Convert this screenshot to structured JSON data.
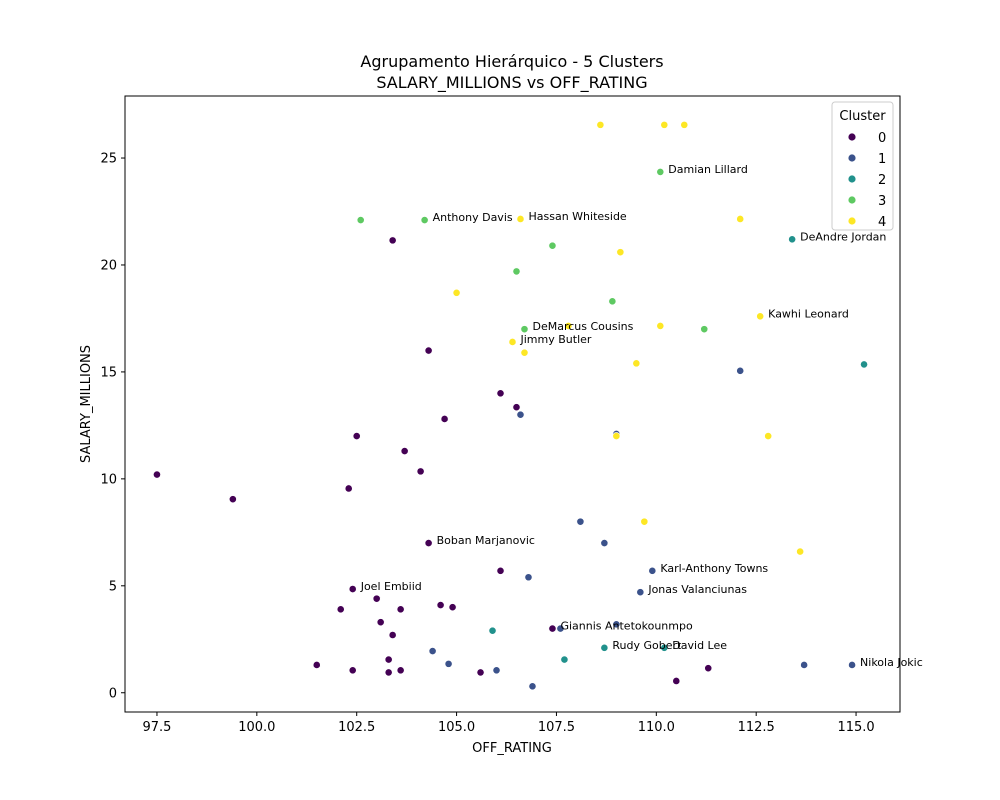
{
  "chart_data": {
    "type": "scatter",
    "title": "Agrupamento Hierárquico - 5 Clusters",
    "subtitle": "SALARY_MILLIONS vs OFF_RATING",
    "xlabel": "OFF_RATING",
    "ylabel": "SALARY_MILLIONS",
    "xlim": [
      96.7,
      116.1
    ],
    "ylim": [
      -0.9,
      27.9
    ],
    "xticks": [
      97.5,
      100.0,
      102.5,
      105.0,
      107.5,
      110.0,
      112.5,
      115.0
    ],
    "xtick_labels": [
      "97.5",
      "100.0",
      "102.5",
      "105.0",
      "107.5",
      "110.0",
      "112.5",
      "115.0"
    ],
    "yticks": [
      0,
      5,
      10,
      15,
      20,
      25
    ],
    "ytick_labels": [
      "0",
      "5",
      "10",
      "15",
      "20",
      "25"
    ],
    "grid": false,
    "legend": {
      "title": "Cluster",
      "position": "top-right"
    },
    "series": [
      {
        "name": "0",
        "color": "#440154",
        "points": [
          [
            97.5,
            10.2
          ],
          [
            99.4,
            9.05
          ],
          [
            101.5,
            1.3
          ],
          [
            102.1,
            3.9
          ],
          [
            102.3,
            9.55
          ],
          [
            102.4,
            4.85
          ],
          [
            102.4,
            1.05
          ],
          [
            102.5,
            12.0
          ],
          [
            103.0,
            4.4
          ],
          [
            103.1,
            3.3
          ],
          [
            103.3,
            1.55
          ],
          [
            103.3,
            0.95
          ],
          [
            103.4,
            21.15
          ],
          [
            103.4,
            2.7
          ],
          [
            103.6,
            3.9
          ],
          [
            103.6,
            1.05
          ],
          [
            103.7,
            11.3
          ],
          [
            104.1,
            10.35
          ],
          [
            104.3,
            16.0
          ],
          [
            104.3,
            7.0
          ],
          [
            104.6,
            4.1
          ],
          [
            104.7,
            12.8
          ],
          [
            104.9,
            4.0
          ],
          [
            105.6,
            0.95
          ],
          [
            106.1,
            14.0
          ],
          [
            106.1,
            5.7
          ],
          [
            106.5,
            13.35
          ],
          [
            107.4,
            3.0
          ],
          [
            110.5,
            0.55
          ],
          [
            111.3,
            1.15
          ]
        ]
      },
      {
        "name": "1",
        "color": "#3b528b",
        "points": [
          [
            104.4,
            1.95
          ],
          [
            104.8,
            1.35
          ],
          [
            106.0,
            1.05
          ],
          [
            106.6,
            13.0
          ],
          [
            106.8,
            5.4
          ],
          [
            106.9,
            0.3
          ],
          [
            107.6,
            3.0
          ],
          [
            108.1,
            8.0
          ],
          [
            108.7,
            7.0
          ],
          [
            109.0,
            12.1
          ],
          [
            109.0,
            3.2
          ],
          [
            109.6,
            4.7
          ],
          [
            109.9,
            5.7
          ],
          [
            112.1,
            15.05
          ],
          [
            113.7,
            1.3
          ],
          [
            114.9,
            1.3
          ]
        ]
      },
      {
        "name": "2",
        "color": "#21918c",
        "points": [
          [
            105.9,
            2.9
          ],
          [
            107.7,
            1.55
          ],
          [
            108.7,
            2.1
          ],
          [
            110.2,
            2.1
          ],
          [
            113.4,
            21.2
          ],
          [
            115.2,
            15.35
          ]
        ]
      },
      {
        "name": "3",
        "color": "#5ec962",
        "points": [
          [
            102.6,
            22.1
          ],
          [
            104.2,
            22.1
          ],
          [
            106.5,
            19.7
          ],
          [
            106.7,
            17.0
          ],
          [
            107.4,
            20.9
          ],
          [
            108.9,
            18.3
          ],
          [
            110.1,
            24.35
          ],
          [
            111.2,
            17.0
          ]
        ]
      },
      {
        "name": "4",
        "color": "#fde725",
        "points": [
          [
            105.0,
            18.7
          ],
          [
            106.4,
            16.4
          ],
          [
            106.6,
            22.15
          ],
          [
            106.7,
            15.9
          ],
          [
            107.8,
            17.15
          ],
          [
            108.6,
            26.55
          ],
          [
            109.0,
            12.0
          ],
          [
            109.1,
            20.6
          ],
          [
            109.5,
            15.4
          ],
          [
            109.7,
            8.0
          ],
          [
            110.1,
            17.15
          ],
          [
            110.2,
            26.55
          ],
          [
            110.7,
            26.55
          ],
          [
            112.1,
            22.15
          ],
          [
            112.6,
            17.6
          ],
          [
            112.8,
            12.0
          ],
          [
            113.6,
            6.6
          ]
        ]
      }
    ],
    "annotations": [
      {
        "text": "Damian Lillard",
        "x": 110.1,
        "y": 24.35
      },
      {
        "text": "Anthony Davis",
        "x": 104.2,
        "y": 22.1
      },
      {
        "text": "Hassan Whiteside",
        "x": 106.6,
        "y": 22.15
      },
      {
        "text": "DeAndre Jordan",
        "x": 113.4,
        "y": 21.2
      },
      {
        "text": "Kawhi Leonard",
        "x": 112.6,
        "y": 17.6
      },
      {
        "text": "DeMarcus Cousins",
        "x": 106.7,
        "y": 17.0
      },
      {
        "text": "Jimmy Butler",
        "x": 106.4,
        "y": 16.4
      },
      {
        "text": "Boban Marjanovic",
        "x": 104.3,
        "y": 7.0
      },
      {
        "text": "Karl-Anthony Towns",
        "x": 109.9,
        "y": 5.7
      },
      {
        "text": "Joel Embiid",
        "x": 102.4,
        "y": 4.85
      },
      {
        "text": "Jonas Valanciunas",
        "x": 109.6,
        "y": 4.7
      },
      {
        "text": "Giannis Antetokounmpo",
        "x": 107.4,
        "y": 3.0
      },
      {
        "text": "Rudy Gobert",
        "x": 108.7,
        "y": 2.1
      },
      {
        "text": "David Lee",
        "x": 110.2,
        "y": 2.1
      },
      {
        "text": "Nikola Jokic",
        "x": 114.9,
        "y": 1.3
      }
    ]
  }
}
